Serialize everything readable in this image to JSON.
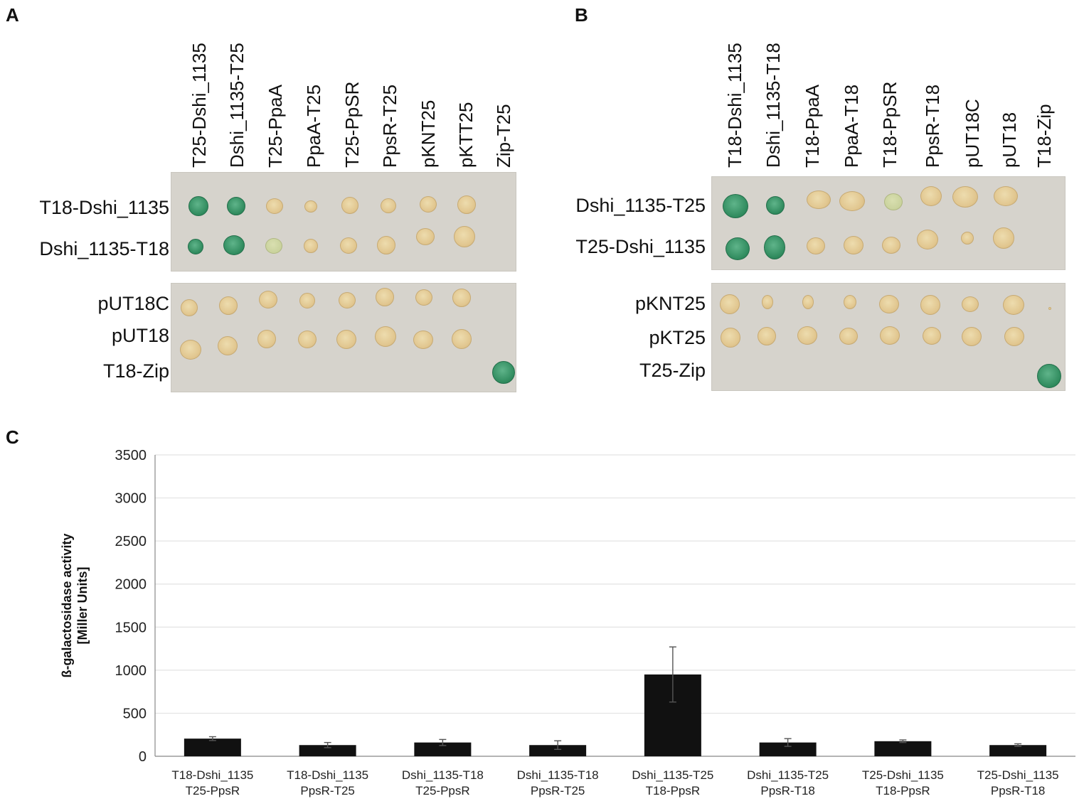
{
  "panel_a": {
    "letter": "A",
    "columns": [
      "T25-Dshi_1135",
      "Dshi_1135-T25",
      "T25-PpaA",
      "PpaA-T25",
      "T25-PpSR",
      "PpsR-T25",
      "pKNT25",
      "pKTT25",
      "Zip-T25"
    ],
    "top_rows": [
      "T18-Dshi_1135",
      "Dshi_1135-T18"
    ],
    "bottom_rows": [
      "pUT18C",
      "pUT18",
      "T18-Zip"
    ]
  },
  "panel_b": {
    "letter": "B",
    "columns": [
      "T18-Dshi_1135",
      "Dshi_1135-T18",
      "T18-PpaA",
      "PpaA-T18",
      "T18-PpSR",
      "PpsR-T18",
      "pUT18C",
      "pUT18",
      "T18-Zip"
    ],
    "top_rows": [
      "Dshi_1135-T25",
      "T25-Dshi_1135"
    ],
    "bottom_rows": [
      "pKNT25",
      "pKT25",
      "T25-Zip"
    ]
  },
  "panel_c": {
    "letter": "C"
  },
  "chart_data": {
    "type": "bar",
    "title": "",
    "ylabel": "ß-galactosidase activity\n[Miller Units]",
    "xlabel": "",
    "ylim": [
      0,
      3500
    ],
    "yticks": [
      0,
      500,
      1000,
      1500,
      2000,
      2500,
      3000,
      3500
    ],
    "grid": true,
    "categories": [
      [
        "T18-Dshi_1135",
        "T25-PpsR"
      ],
      [
        "T18-Dshi_1135",
        "PpsR-T25"
      ],
      [
        "Dshi_1135-T18",
        "T25-PpsR"
      ],
      [
        "Dshi_1135-T18",
        "PpsR-T25"
      ],
      [
        "Dshi_1135-T25",
        "T18-PpsR"
      ],
      [
        "Dshi_1135-T25",
        "PpsR-T18"
      ],
      [
        "T25-Dshi_1135",
        "T18-PpsR"
      ],
      [
        "T25-Dshi_1135",
        "PpsR-T18"
      ]
    ],
    "values": [
      205,
      130,
      160,
      130,
      950,
      160,
      175,
      130
    ],
    "errors": [
      22,
      30,
      35,
      50,
      320,
      45,
      15,
      15
    ],
    "bar_color": "#111111",
    "grid_color": "#e3e3e3"
  }
}
